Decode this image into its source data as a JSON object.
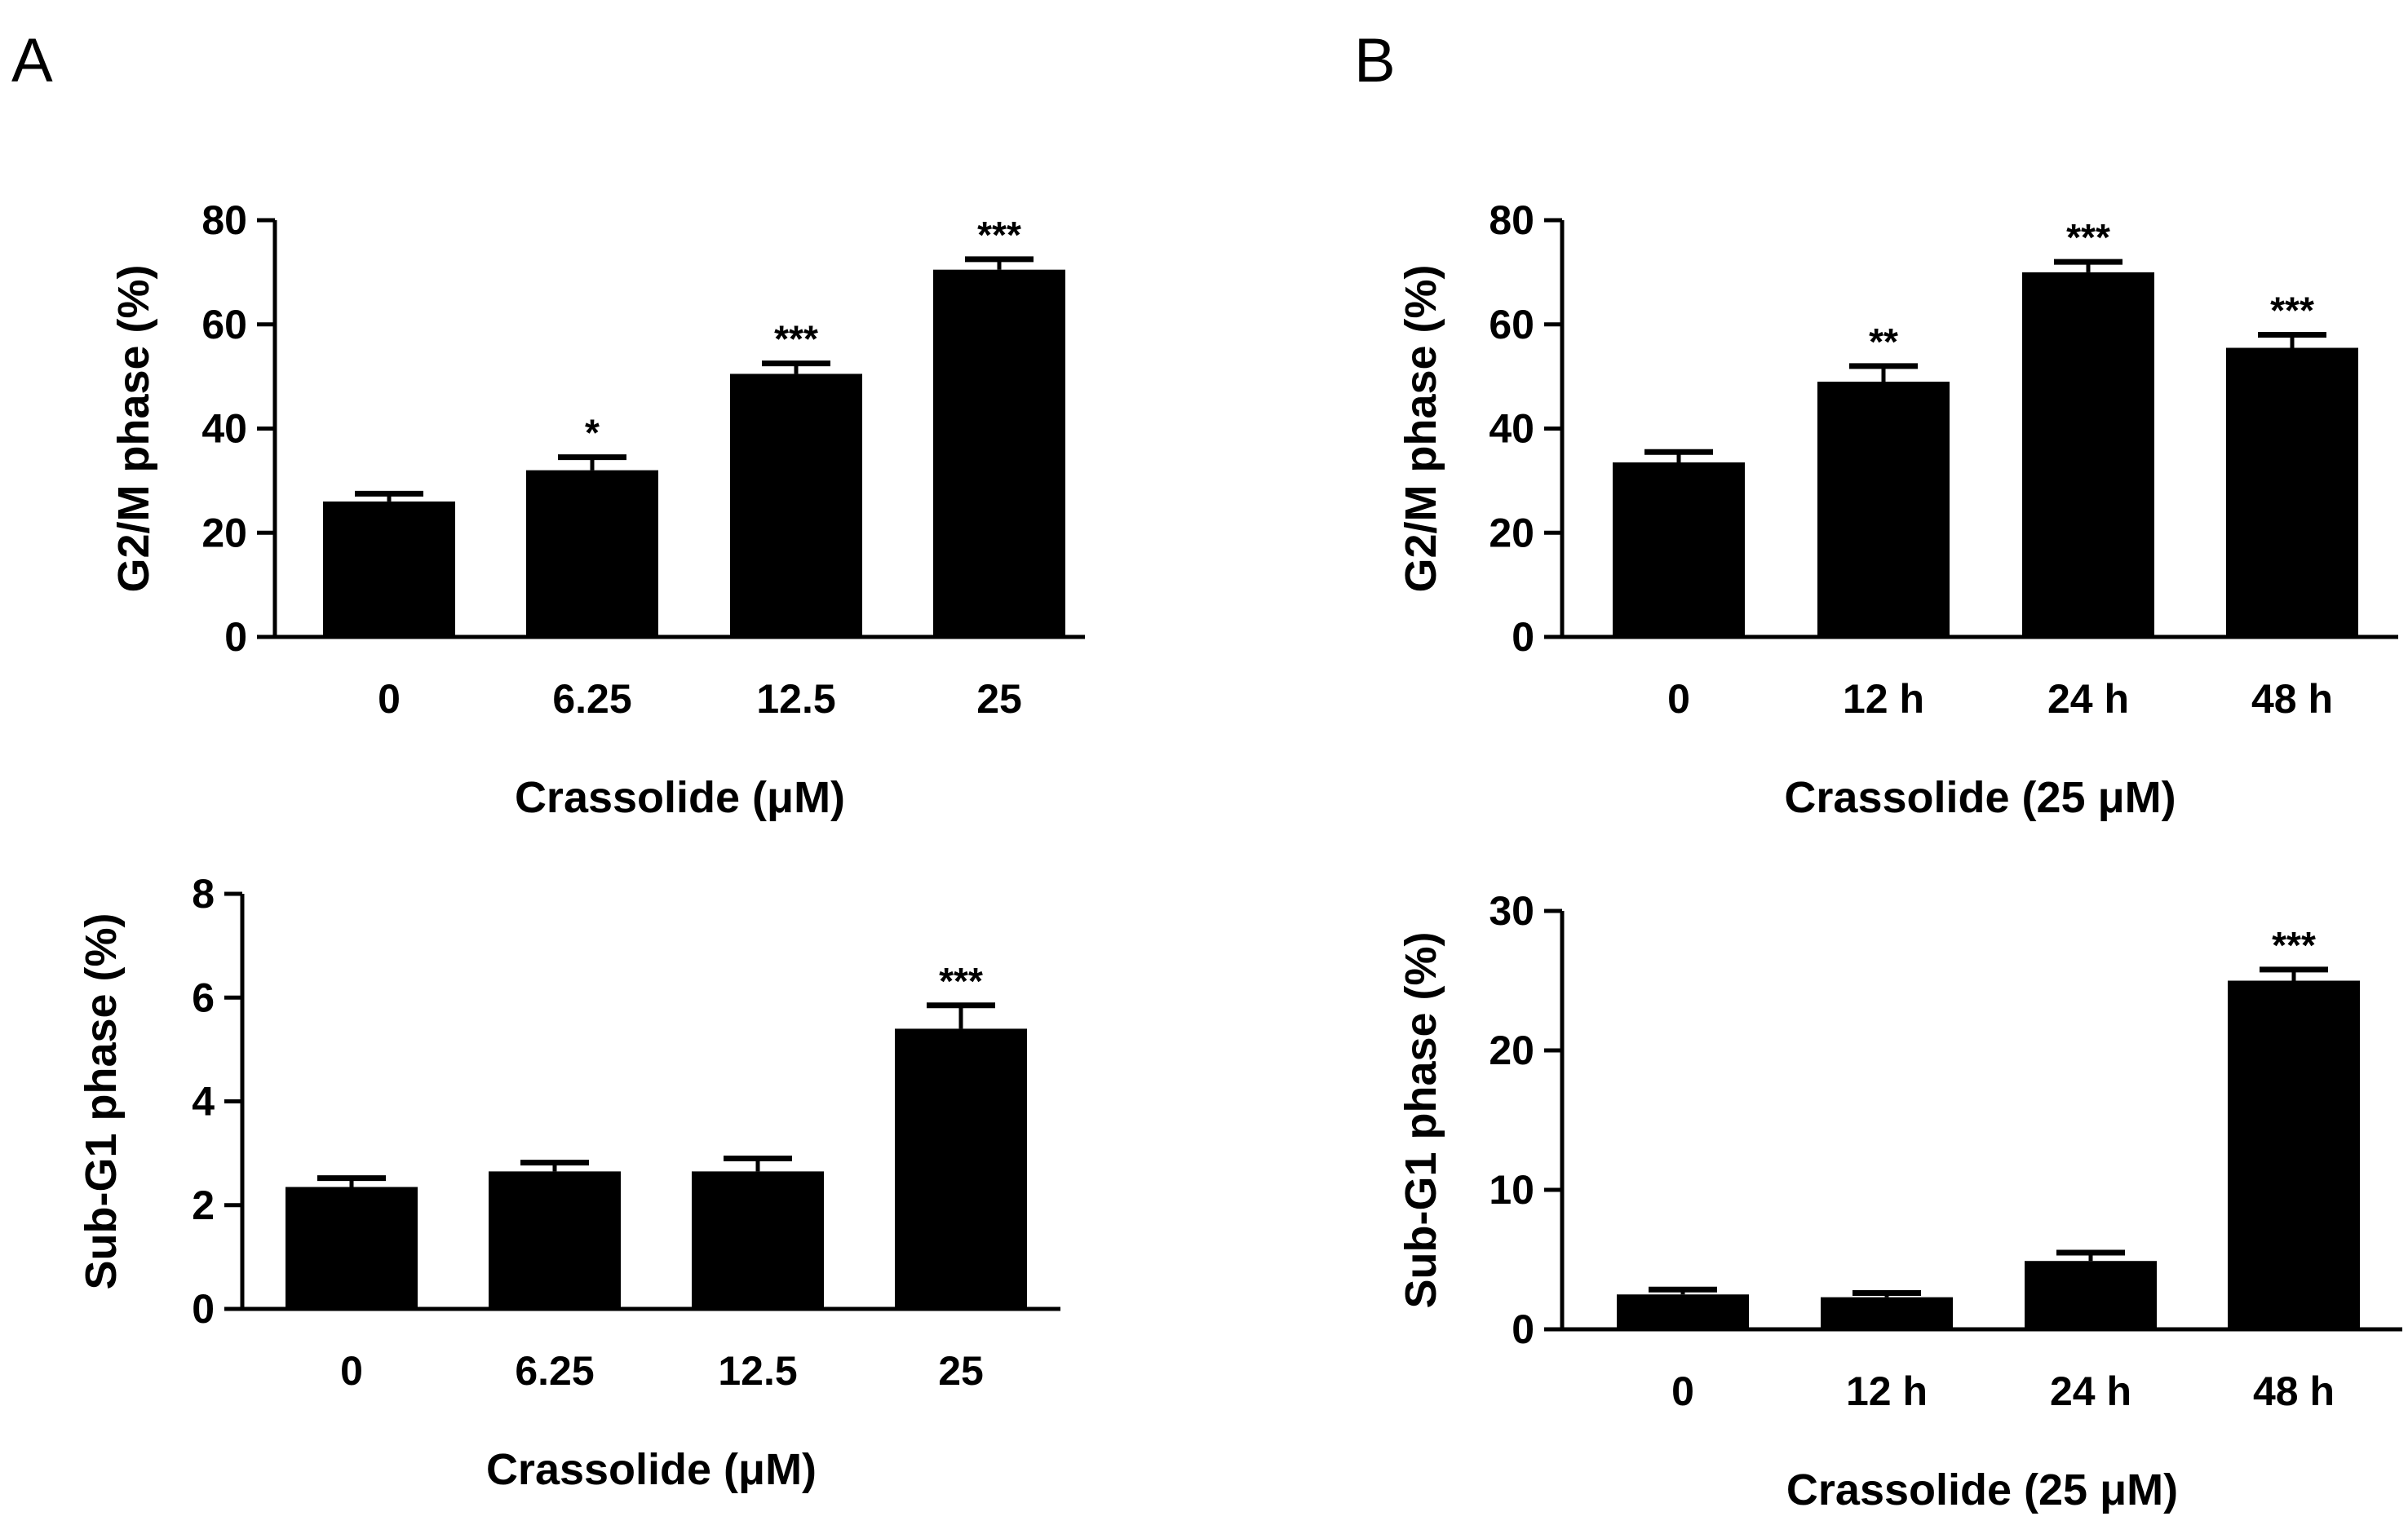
{
  "figure": {
    "panel_labels": [
      "A",
      "B"
    ]
  },
  "chart_data": [
    {
      "id": "A-top",
      "panel": "A",
      "type": "bar",
      "title": "",
      "xlabel": "Crassolide (μM)",
      "ylabel": "G2/M phase (%)",
      "categories": [
        "0",
        "6.25",
        "12.5",
        "25"
      ],
      "values": [
        26,
        32,
        50.5,
        70.5
      ],
      "errors": [
        1.5,
        2.5,
        2.0,
        2.0
      ],
      "significance": [
        "",
        "*",
        "***",
        "***"
      ],
      "ylim": [
        0,
        80
      ],
      "yticks": [
        0,
        20,
        40,
        60,
        80
      ],
      "yticklabels": [
        "0",
        "20",
        "40",
        "60",
        "80"
      ],
      "bar_color": "#000000",
      "grid": false
    },
    {
      "id": "A-bottom",
      "panel": "A",
      "type": "bar",
      "title": "",
      "xlabel": "Crassolide (μM)",
      "ylabel": "Sub-G1 phase (%)",
      "categories": [
        "0",
        "6.25",
        "12.5",
        "25"
      ],
      "values": [
        2.35,
        2.65,
        2.65,
        5.4
      ],
      "errors": [
        0.17,
        0.17,
        0.25,
        0.45
      ],
      "significance": [
        "",
        "",
        "",
        "***"
      ],
      "ylim": [
        0,
        8
      ],
      "yticks": [
        0,
        2,
        4,
        6,
        8
      ],
      "yticklabels": [
        "0",
        "2",
        "4",
        "6",
        "8"
      ],
      "bar_color": "#000000",
      "grid": false
    },
    {
      "id": "B-top",
      "panel": "B",
      "type": "bar",
      "title": "",
      "xlabel": "Crassolide (25 μM)",
      "ylabel": "G2/M phase (%)",
      "categories": [
        "0",
        "12 h",
        "24 h",
        "48 h"
      ],
      "values": [
        33.5,
        49,
        70,
        55.5
      ],
      "errors": [
        2.0,
        3.0,
        2.0,
        2.5
      ],
      "significance": [
        "",
        "**",
        "***",
        "***"
      ],
      "ylim": [
        0,
        80
      ],
      "yticks": [
        0,
        20,
        40,
        60,
        80
      ],
      "yticklabels": [
        "0",
        "20",
        "40",
        "60",
        "80"
      ],
      "bar_color": "#000000",
      "grid": false
    },
    {
      "id": "B-bottom",
      "panel": "B",
      "type": "bar",
      "title": "",
      "xlabel": "Crassolide (25 μM)",
      "ylabel": "Sub-G1 phase (%)",
      "categories": [
        "0",
        "12 h",
        "24 h",
        "48 h"
      ],
      "values": [
        2.5,
        2.3,
        4.9,
        25
      ],
      "errors": [
        0.35,
        0.3,
        0.6,
        0.8
      ],
      "significance": [
        "",
        "",
        "",
        "***"
      ],
      "ylim": [
        0,
        30
      ],
      "yticks": [
        0,
        10,
        20,
        30
      ],
      "yticklabels": [
        "0",
        "10",
        "20",
        "30"
      ],
      "bar_color": "#000000",
      "grid": false
    }
  ]
}
